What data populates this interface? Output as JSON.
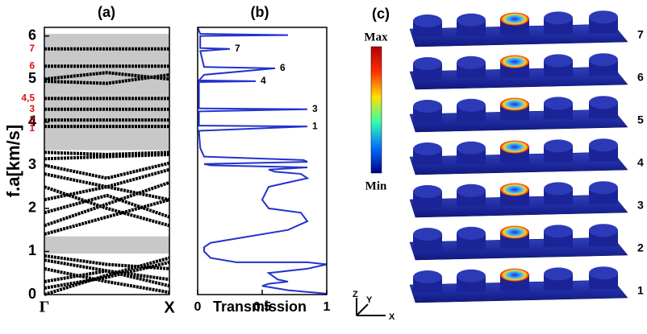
{
  "chart_data": [
    {
      "type": "band",
      "label": "(a)",
      "ylabel": "f.a[km/s]",
      "ylim": [
        0,
        6.2
      ],
      "yticks": [
        0,
        1,
        2,
        3,
        4,
        5,
        6
      ],
      "categories": [
        "Γ",
        "X"
      ],
      "k": [
        0,
        0.5,
        1
      ],
      "line_color": "#000000",
      "gap_color": "#c8c8c8",
      "label_color": "#dd1111",
      "gaps": [
        [
          0.95,
          1.35
        ],
        [
          3.35,
          6.05
        ]
      ],
      "bands": [
        [
          0,
          0.45,
          0.85
        ],
        [
          0.15,
          0.4,
          0.75
        ],
        [
          0.3,
          0.55,
          0.2
        ],
        [
          0.6,
          0.3,
          0.05
        ],
        [
          0.8,
          0.55,
          0.35
        ],
        [
          0.9,
          0.7,
          0.6
        ],
        [
          1.4,
          1.8,
          2.2
        ],
        [
          1.6,
          2.1,
          2.6
        ],
        [
          1.9,
          2.3,
          1.8
        ],
        [
          2.2,
          2.5,
          2.9
        ],
        [
          2.5,
          2,
          1.6
        ],
        [
          2.8,
          2.5,
          2.2
        ],
        [
          3,
          2.7,
          3.05
        ],
        [
          3.15,
          3.2,
          3.25
        ],
        [
          3.3,
          3.25,
          3.3
        ],
        [
          3.9,
          3.9,
          3.9
        ],
        [
          4.05,
          4.05,
          4.05
        ],
        [
          4.3,
          4.3,
          4.3
        ],
        [
          4.55,
          4.55,
          4.55
        ],
        [
          4.95,
          4.9,
          5.1
        ],
        [
          5,
          5.15,
          5
        ],
        [
          5.3,
          5.3,
          5.3
        ],
        [
          5.7,
          5.7,
          5.7
        ]
      ],
      "band_labels": [
        {
          "label": "7",
          "value": 5.7
        },
        {
          "label": "6",
          "value": 5.3
        },
        {
          "label": "4,5",
          "value": 4.55
        },
        {
          "label": "3",
          "value": 4.3
        },
        {
          "label": "2",
          "value": 4.05
        },
        {
          "label": "1",
          "value": 3.85
        }
      ]
    },
    {
      "type": "line",
      "label": "(b)",
      "xlabel": "Transmission",
      "xlim": [
        0,
        1
      ],
      "xticks": [
        0,
        0.5,
        1
      ],
      "ylim": [
        0,
        6.2
      ],
      "series": [
        {
          "color": "#2233cc",
          "x": [
            1,
            0.7,
            0.5,
            0.55,
            0.7,
            0.62,
            0.55,
            0.85,
            1,
            0.85,
            0.3,
            0.1,
            0.05,
            0.05,
            0.1,
            0.3,
            0.7,
            0.85,
            0.8,
            0.55,
            0.5,
            0.55,
            0.7,
            0.85,
            0.8,
            0.6,
            0.55,
            0.85,
            0.1,
            0.05,
            0.85,
            0.82,
            0.05,
            0.02,
            0.01,
            0.85,
            0.01,
            0.01,
            0.85,
            0.01,
            0.01,
            0.45,
            0.01,
            0.05,
            0.6,
            0.05,
            0.02,
            0.25,
            0.02,
            0.02,
            0.7,
            0.02,
            0
          ],
          "y": [
            0.02,
            0.1,
            0.2,
            0.25,
            0.3,
            0.35,
            0.5,
            0.6,
            0.7,
            0.75,
            0.75,
            0.85,
            1,
            1.1,
            1.2,
            1.3,
            1.5,
            1.7,
            1.9,
            2,
            2.2,
            2.5,
            2.6,
            2.7,
            2.8,
            2.85,
            2.9,
            2.95,
            3,
            3.03,
            3.08,
            3.12,
            3.2,
            3.4,
            3.8,
            3.9,
            3.92,
            4.25,
            4.3,
            4.32,
            4.93,
            4.95,
            4.97,
            5.1,
            5.25,
            5.28,
            5.65,
            5.7,
            5.72,
            6,
            6.02,
            6.05,
            6.2
          ]
        }
      ],
      "annotations": [
        {
          "text": "7",
          "x": 0.25,
          "y": 5.7
        },
        {
          "text": "6",
          "x": 0.6,
          "y": 5.25
        },
        {
          "text": "4",
          "x": 0.45,
          "y": 4.95
        },
        {
          "text": "3",
          "x": 0.85,
          "y": 4.3
        },
        {
          "text": "1",
          "x": 0.85,
          "y": 3.9
        }
      ]
    }
  ],
  "panel_c": {
    "label": "(c)",
    "colorbar": {
      "max": "Max",
      "min": "Min"
    },
    "mode_labels": [
      "7",
      "6",
      "5",
      "4",
      "3",
      "2",
      "1"
    ],
    "axes": {
      "z": "Z",
      "y": "Y",
      "x": "X"
    }
  }
}
